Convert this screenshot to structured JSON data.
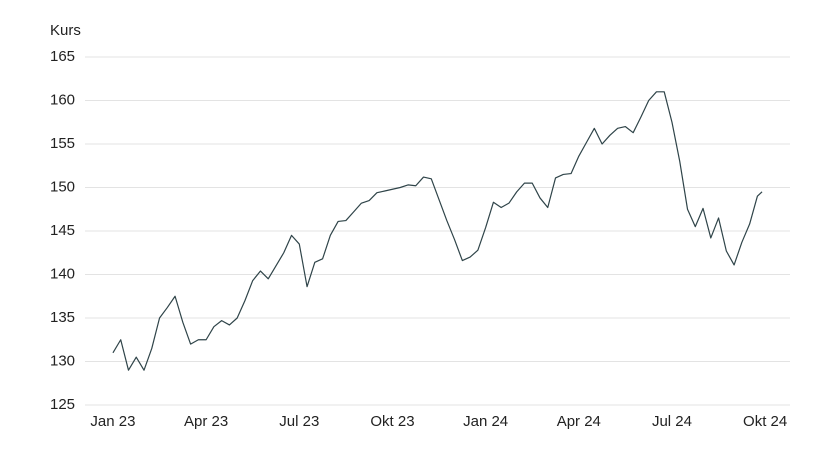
{
  "chart_data": {
    "type": "line",
    "ylabel": "Kurs",
    "color": "#2f4449",
    "grid": true,
    "ylim": [
      125,
      165
    ],
    "yticks": [
      125,
      130,
      135,
      140,
      145,
      150,
      155,
      160,
      165
    ],
    "xlim": [
      -0.9,
      21.8
    ],
    "xticks": [
      {
        "value": 0,
        "label": "Jan 23"
      },
      {
        "value": 3,
        "label": "Apr 23"
      },
      {
        "value": 6,
        "label": "Jul 23"
      },
      {
        "value": 9,
        "label": "Okt 23"
      },
      {
        "value": 12,
        "label": "Jan 24"
      },
      {
        "value": 15,
        "label": "Apr 24"
      },
      {
        "value": 18,
        "label": "Jul 24"
      },
      {
        "value": 21,
        "label": "Okt 24"
      }
    ],
    "x": [
      0,
      0.25,
      0.5,
      0.75,
      1,
      1.25,
      1.5,
      1.75,
      2,
      2.25,
      2.5,
      2.75,
      3,
      3.25,
      3.5,
      3.75,
      4,
      4.25,
      4.5,
      4.75,
      5,
      5.25,
      5.5,
      5.75,
      6,
      6.25,
      6.5,
      6.75,
      7,
      7.25,
      7.5,
      7.75,
      8,
      8.25,
      8.5,
      8.75,
      9,
      9.25,
      9.5,
      9.75,
      10,
      10.25,
      10.5,
      10.75,
      11,
      11.25,
      11.5,
      11.75,
      12,
      12.25,
      12.5,
      12.75,
      13,
      13.25,
      13.5,
      13.75,
      14,
      14.25,
      14.5,
      14.75,
      15,
      15.25,
      15.5,
      15.75,
      16,
      16.25,
      16.5,
      16.75,
      17,
      17.25,
      17.5,
      17.75,
      18,
      18.25,
      18.5,
      18.75,
      19,
      19.25,
      19.5,
      19.75,
      20,
      20.25,
      20.5,
      20.75,
      20.9
    ],
    "values": [
      131,
      132.5,
      129,
      130.5,
      129,
      131.5,
      135,
      136.2,
      137.5,
      134.5,
      132,
      132.5,
      132.5,
      134,
      134.7,
      134.2,
      135,
      137,
      139.3,
      140.4,
      139.5,
      141,
      142.5,
      144.5,
      143.5,
      138.6,
      141.4,
      141.8,
      144.5,
      146.1,
      146.2,
      147.2,
      148.2,
      148.5,
      149.4,
      149.6,
      149.8,
      150,
      150.3,
      150.2,
      151.2,
      151,
      148.6,
      146.2,
      144,
      141.6,
      142,
      142.8,
      145.4,
      148.3,
      147.7,
      148.2,
      149.5,
      150.5,
      150.5,
      148.8,
      147.7,
      151.1,
      151.5,
      151.6,
      153.6,
      155.2,
      156.8,
      155,
      156,
      156.8,
      157,
      156.3,
      158.1,
      160,
      161,
      161,
      157.5,
      153,
      147.5,
      145.5,
      147.6,
      144.2,
      146.5,
      142.7,
      141.1,
      143.7,
      145.8,
      149,
      149.5
    ]
  }
}
